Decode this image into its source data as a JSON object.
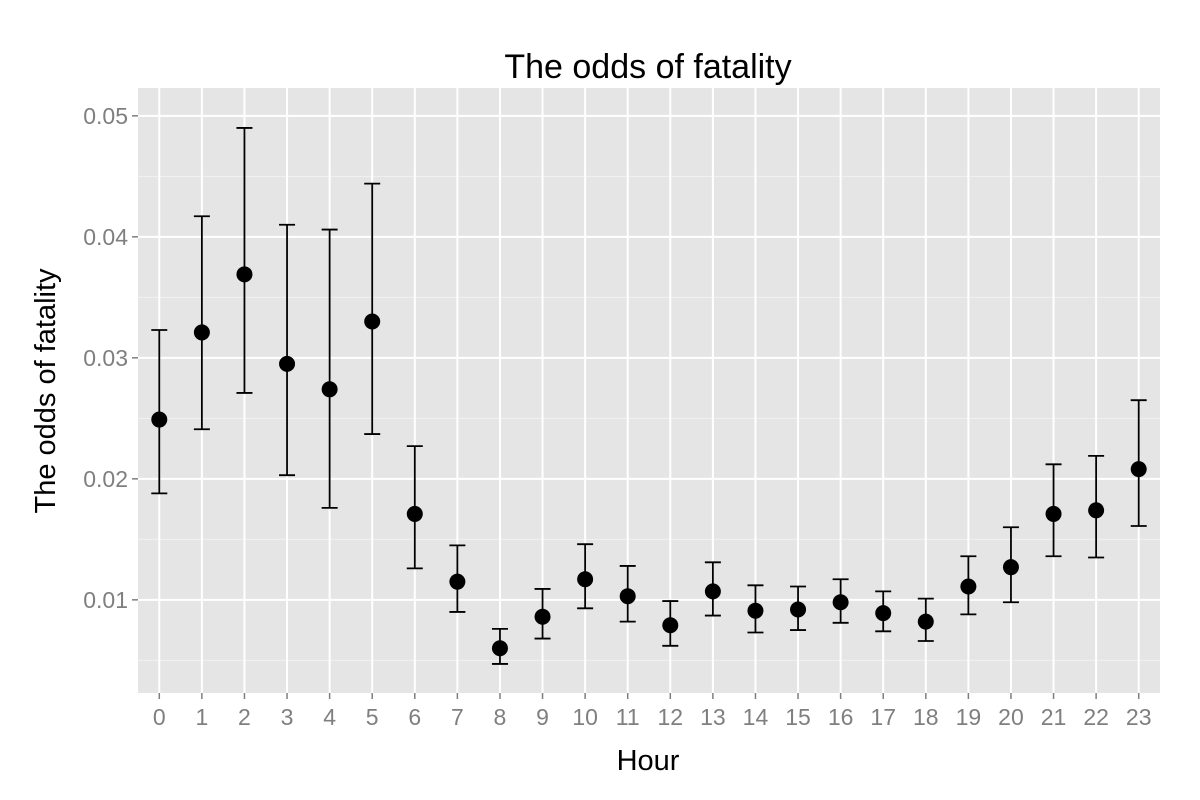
{
  "chart_data": {
    "type": "scatter",
    "title": "The odds of fatality",
    "xlabel": "Hour",
    "ylabel": "The odds of fatality",
    "categories": [
      "0",
      "1",
      "2",
      "3",
      "4",
      "5",
      "6",
      "7",
      "8",
      "9",
      "10",
      "11",
      "12",
      "13",
      "14",
      "15",
      "16",
      "17",
      "18",
      "19",
      "20",
      "21",
      "22",
      "23"
    ],
    "y_ticks": [
      0.01,
      0.02,
      0.03,
      0.04,
      0.05
    ],
    "y_tick_labels": [
      "0.01",
      "0.02",
      "0.03",
      "0.04",
      "0.05"
    ],
    "ylim": [
      0.0023,
      0.0523
    ],
    "grid": true,
    "series": [
      {
        "values": [
          0.0249,
          0.0321,
          0.0369,
          0.0295,
          0.0274,
          0.033,
          0.0171,
          0.0115,
          0.006,
          0.0086,
          0.0117,
          0.0103,
          0.0079,
          0.0107,
          0.0091,
          0.0092,
          0.0098,
          0.0089,
          0.0082,
          0.0111,
          0.0127,
          0.0171,
          0.0174,
          0.0208
        ],
        "lower": [
          0.0188,
          0.0241,
          0.0271,
          0.0203,
          0.0176,
          0.0237,
          0.0126,
          0.009,
          0.0047,
          0.0068,
          0.0093,
          0.0082,
          0.0062,
          0.0087,
          0.0073,
          0.0075,
          0.0081,
          0.0074,
          0.0066,
          0.0088,
          0.0098,
          0.0136,
          0.0135,
          0.0161
        ],
        "upper": [
          0.0323,
          0.0417,
          0.049,
          0.041,
          0.0406,
          0.0444,
          0.0227,
          0.0145,
          0.0076,
          0.0109,
          0.0146,
          0.0128,
          0.0099,
          0.0131,
          0.0112,
          0.0111,
          0.0117,
          0.0107,
          0.0101,
          0.0136,
          0.016,
          0.0212,
          0.0219,
          0.0265
        ]
      }
    ]
  }
}
